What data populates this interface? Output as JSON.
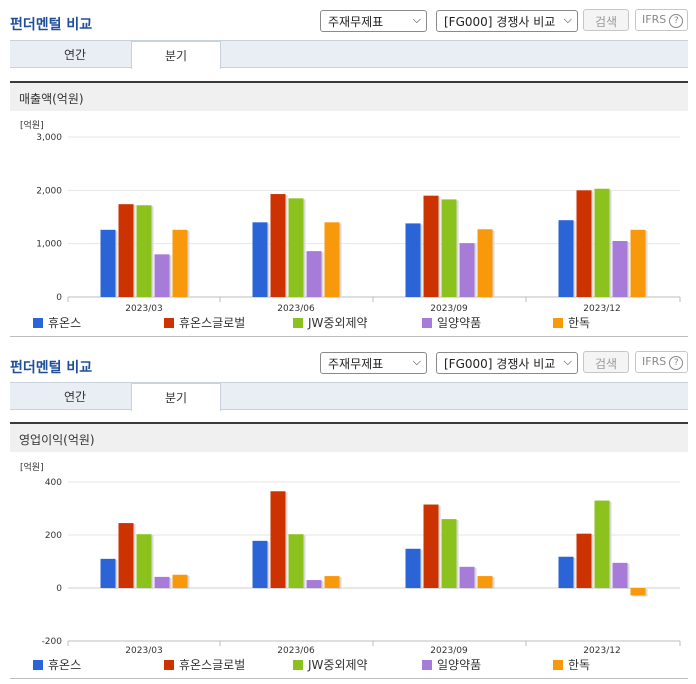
{
  "header": {
    "title": "펀더멘털 비교",
    "statement_select": "주재무제표",
    "competitor_select": "[FG000] 경쟁사 비교",
    "search_label": "검색",
    "ifrs_label": "IFRS",
    "help_glyph": "?"
  },
  "tabs": [
    "연간",
    "분기"
  ],
  "active_tab": 1,
  "colors": [
    "#2a64d6",
    "#cc3300",
    "#8cc21d",
    "#a77cd9",
    "#f7990b"
  ],
  "chart_data": [
    {
      "type": "bar",
      "title": "매출액(억원)",
      "unit": "[억원]",
      "categories": [
        "2023/03",
        "2023/06",
        "2023/09",
        "2023/12"
      ],
      "ylim": [
        0,
        3000
      ],
      "yticks": [
        "3,000",
        "2,000",
        "1,000",
        "0"
      ],
      "ytick_values": [
        3000,
        2000,
        1000,
        0
      ],
      "series": [
        {
          "name": "휴온스",
          "values": [
            1260,
            1400,
            1380,
            1440
          ]
        },
        {
          "name": "휴온스글로벌",
          "values": [
            1740,
            1930,
            1900,
            2000
          ]
        },
        {
          "name": "JW중외제약",
          "values": [
            1720,
            1850,
            1830,
            2030
          ]
        },
        {
          "name": "일양약품",
          "values": [
            800,
            860,
            1010,
            1050
          ]
        },
        {
          "name": "한독",
          "values": [
            1260,
            1400,
            1270,
            1260
          ]
        }
      ]
    },
    {
      "type": "bar",
      "title": "영업이익(억원)",
      "unit": "[억원]",
      "categories": [
        "2023/03",
        "2023/06",
        "2023/09",
        "2023/12"
      ],
      "ylim": [
        -200,
        400
      ],
      "yticks": [
        "400",
        "200",
        "0",
        "-200"
      ],
      "ytick_values": [
        400,
        200,
        0,
        -200
      ],
      "series": [
        {
          "name": "휴온스",
          "values": [
            110,
            178,
            148,
            118
          ]
        },
        {
          "name": "휴온스글로벌",
          "values": [
            245,
            365,
            315,
            205
          ]
        },
        {
          "name": "JW중외제약",
          "values": [
            203,
            203,
            260,
            330
          ]
        },
        {
          "name": "일양약품",
          "values": [
            42,
            30,
            80,
            95
          ]
        },
        {
          "name": "한독",
          "values": [
            50,
            45,
            45,
            -28
          ]
        }
      ]
    }
  ]
}
